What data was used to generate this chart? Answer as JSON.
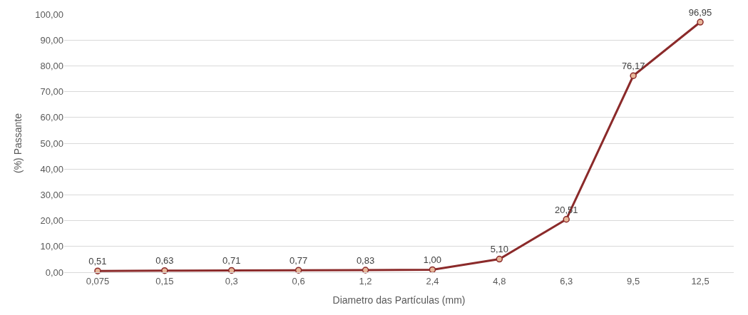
{
  "chart_data": {
    "type": "line",
    "xlabel": "Diametro das Partículas (mm)",
    "ylabel": "(%) Passante",
    "categories": [
      "0,075",
      "0,15",
      "0,3",
      "0,6",
      "1,2",
      "2,4",
      "4,8",
      "6,3",
      "9,5",
      "12,5"
    ],
    "series": [
      {
        "color": "#8b2a2a",
        "values": [
          0.51,
          0.63,
          0.71,
          0.77,
          0.83,
          1.0,
          5.1,
          20.51,
          76.17,
          96.95
        ],
        "value_labels": [
          "0,51",
          "0,63",
          "0,71",
          "0,77",
          "0,83",
          "1,00",
          "5,10",
          "20,51",
          "76,17",
          "96,95"
        ]
      }
    ],
    "ylim": [
      0,
      100
    ],
    "yticks": [
      {
        "value": 0,
        "label": "0,00"
      },
      {
        "value": 10,
        "label": "10,00"
      },
      {
        "value": 20,
        "label": "20,00"
      },
      {
        "value": 30,
        "label": "30,00"
      },
      {
        "value": 40,
        "label": "40,00"
      },
      {
        "value": 50,
        "label": "50,00"
      },
      {
        "value": 60,
        "label": "60,00"
      },
      {
        "value": 70,
        "label": "70,00"
      },
      {
        "value": 80,
        "label": "80,00"
      },
      {
        "value": 90,
        "label": "90,00"
      },
      {
        "value": 100,
        "label": "100,00"
      }
    ],
    "grid": "y",
    "marker": "circle",
    "line_style": "solid",
    "legend": false
  }
}
